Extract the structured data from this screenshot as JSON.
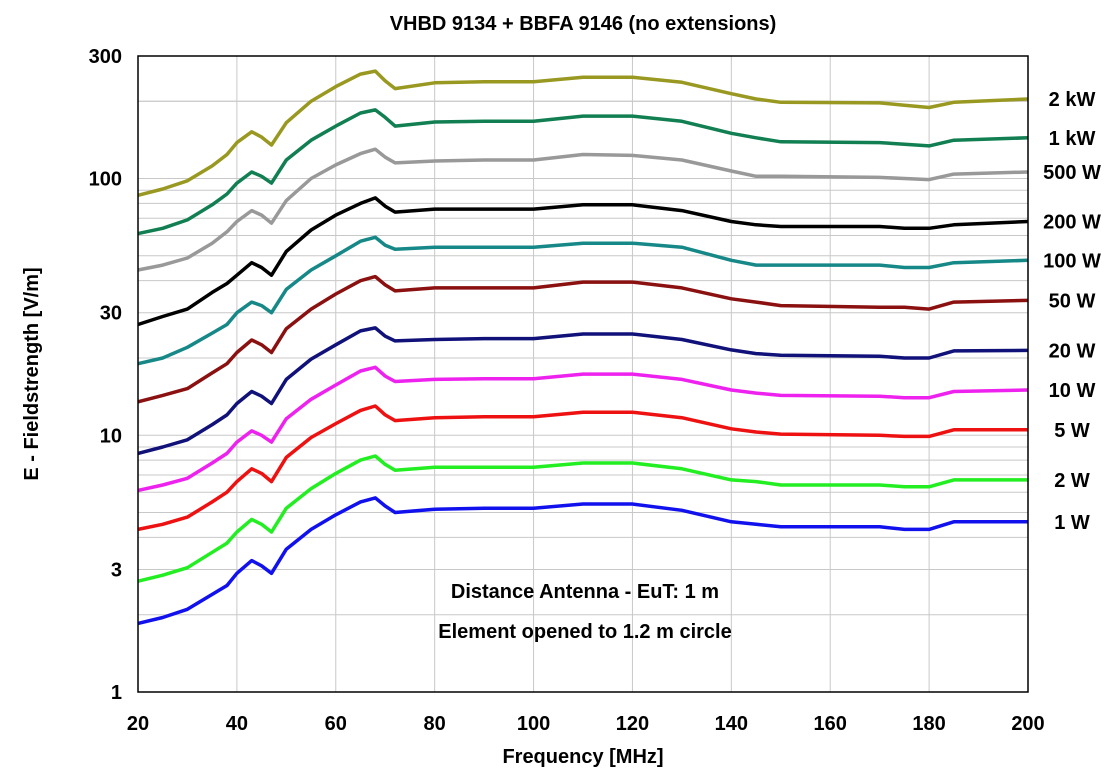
{
  "chart_data": {
    "type": "line",
    "title": "VHBD 9134 + BBFA 9146 (no extensions)",
    "xlabel": "Frequency [MHz]",
    "ylabel": "E - Fieldstrength [V/m]",
    "xlim": [
      20,
      200
    ],
    "ylim": [
      1,
      300
    ],
    "yscale": "log",
    "grid": true,
    "x_ticks": [
      20,
      40,
      60,
      80,
      100,
      120,
      140,
      160,
      180,
      200
    ],
    "x_tick_labels": [
      "20",
      "40",
      "60",
      "80",
      "100",
      "120",
      "140",
      "160",
      "180",
      "200"
    ],
    "y_ticks": [
      1,
      3,
      10,
      30,
      100,
      300
    ],
    "y_tick_labels": [
      "1",
      "3",
      "10",
      "30",
      "100",
      "300"
    ],
    "legend_placement": "right, inline labels",
    "annotations": [
      "Distance Antenna - EuT: 1 m",
      "Element opened to 1.2 m circle"
    ],
    "x": [
      20,
      25,
      30,
      35,
      38,
      40,
      43,
      45,
      47,
      50,
      55,
      60,
      65,
      68,
      70,
      72,
      80,
      90,
      100,
      110,
      120,
      130,
      140,
      145,
      150,
      170,
      175,
      180,
      185,
      200
    ],
    "series": [
      {
        "name": "2 kW",
        "color": "#999922",
        "values": [
          86,
          91,
          98,
          112,
          124,
          138,
          152,
          145,
          135,
          165,
          200,
          228,
          255,
          262,
          240,
          224,
          236,
          238,
          238,
          248,
          248,
          237,
          214,
          204,
          198,
          197,
          193,
          189,
          198,
          204
        ]
      },
      {
        "name": "1 kW",
        "color": "#117f52",
        "values": [
          61,
          64,
          69,
          79,
          87,
          96,
          106,
          102,
          96,
          118,
          141,
          160,
          180,
          185,
          173,
          160,
          166,
          167,
          167,
          175,
          175,
          167,
          150,
          144,
          139,
          138,
          136,
          134,
          141,
          144
        ]
      },
      {
        "name": "500 W",
        "color": "#999999",
        "values": [
          44,
          46,
          49,
          56,
          62,
          68,
          75,
          72,
          67,
          82,
          100,
          113,
          125,
          130,
          121,
          115,
          117,
          118,
          118,
          124,
          123,
          118,
          107,
          102,
          102,
          101,
          100,
          99,
          104,
          106
        ]
      },
      {
        "name": "200 W",
        "color": "#000000",
        "values": [
          27,
          29,
          31,
          36,
          39,
          42,
          47,
          45,
          42,
          52,
          63,
          72,
          80,
          84,
          78,
          74,
          76,
          76,
          76,
          79,
          79,
          75,
          68,
          66,
          65,
          65,
          64,
          64,
          66,
          68
        ]
      },
      {
        "name": "100 W",
        "color": "#178888",
        "values": [
          19,
          20,
          22,
          25,
          27,
          30,
          33,
          32,
          30,
          37,
          44,
          50,
          57,
          59,
          55,
          53,
          54,
          54,
          54,
          56,
          56,
          54,
          48,
          46,
          46,
          46,
          45,
          45,
          47,
          48
        ]
      },
      {
        "name": "50 W",
        "color": "#8b1111",
        "values": [
          13.5,
          14.3,
          15.2,
          17.5,
          19,
          21,
          23.5,
          22.5,
          21,
          26,
          31,
          35.5,
          40,
          41.5,
          38.5,
          36.5,
          37.5,
          37.5,
          37.5,
          39.5,
          39.5,
          37.5,
          34,
          33,
          32,
          31.5,
          31.5,
          31,
          33,
          33.5
        ]
      },
      {
        "name": "20 W",
        "color": "#11117a",
        "values": [
          8.5,
          9,
          9.6,
          11,
          12,
          13.3,
          14.8,
          14.2,
          13.3,
          16.5,
          19.8,
          22.5,
          25.5,
          26.2,
          24.3,
          23.3,
          23.6,
          23.8,
          23.8,
          24.8,
          24.8,
          23.6,
          21.5,
          20.8,
          20.5,
          20.3,
          20,
          20,
          21.3,
          21.4
        ]
      },
      {
        "name": "10 W",
        "color": "#ee22ee",
        "values": [
          6.1,
          6.4,
          6.8,
          7.8,
          8.5,
          9.4,
          10.4,
          10,
          9.4,
          11.6,
          13.8,
          15.7,
          17.8,
          18.4,
          17,
          16.2,
          16.5,
          16.6,
          16.6,
          17.3,
          17.3,
          16.5,
          15,
          14.6,
          14.3,
          14.2,
          14,
          14,
          14.8,
          15
        ]
      },
      {
        "name": "5 W",
        "color": "#ee1111",
        "values": [
          4.3,
          4.5,
          4.8,
          5.5,
          6,
          6.6,
          7.4,
          7.1,
          6.6,
          8.2,
          9.8,
          11.1,
          12.5,
          13,
          12,
          11.4,
          11.7,
          11.8,
          11.8,
          12.3,
          12.3,
          11.7,
          10.6,
          10.3,
          10.1,
          10,
          9.9,
          9.9,
          10.5,
          10.5
        ]
      },
      {
        "name": "2 W",
        "color": "#22ee22",
        "values": [
          2.7,
          2.85,
          3.05,
          3.5,
          3.8,
          4.2,
          4.7,
          4.5,
          4.2,
          5.2,
          6.2,
          7.1,
          8,
          8.3,
          7.7,
          7.3,
          7.5,
          7.5,
          7.5,
          7.8,
          7.8,
          7.4,
          6.7,
          6.6,
          6.4,
          6.4,
          6.3,
          6.3,
          6.7,
          6.7
        ]
      },
      {
        "name": "1 W",
        "color": "#1111ee",
        "values": [
          1.85,
          1.95,
          2.1,
          2.4,
          2.6,
          2.9,
          3.25,
          3.1,
          2.9,
          3.6,
          4.3,
          4.9,
          5.5,
          5.7,
          5.3,
          5,
          5.15,
          5.2,
          5.2,
          5.4,
          5.4,
          5.1,
          4.6,
          4.5,
          4.4,
          4.4,
          4.3,
          4.3,
          4.6,
          4.6
        ]
      }
    ]
  }
}
